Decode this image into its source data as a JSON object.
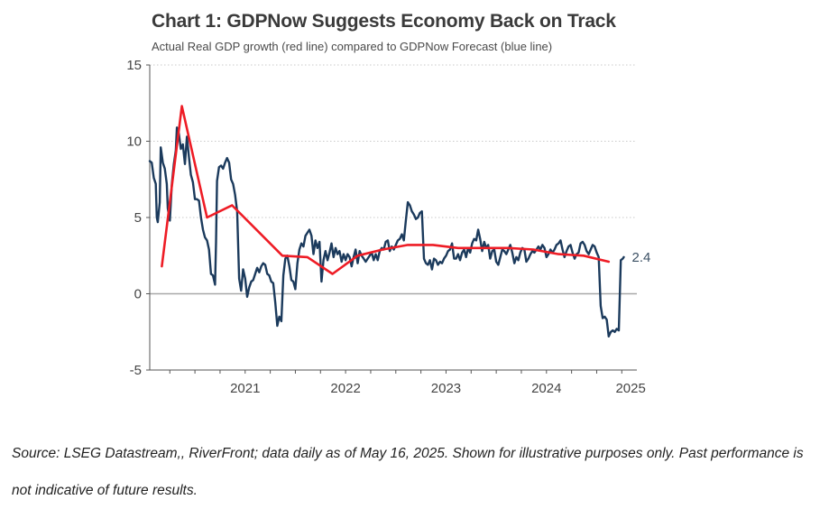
{
  "chart_data": {
    "type": "line",
    "title": "Chart 1: GDPNow Suggests Economy Back on Track",
    "subtitle": "Actual Real GDP growth (red line) compared to GDPNow Forecast (blue line)",
    "xlabel": "",
    "ylabel": "",
    "xlim": [
      2020.55,
      2025.4
    ],
    "ylim": [
      -5,
      15
    ],
    "y_ticks": [
      -5,
      0,
      5,
      10,
      15
    ],
    "y_tick_labels": [
      "-5",
      "0",
      "5",
      "10",
      "15"
    ],
    "x_tick_labels": [
      {
        "label": "2021",
        "value": 2021.0
      },
      {
        "label": "2022",
        "value": 2022.0
      },
      {
        "label": "2023",
        "value": 2023.0
      },
      {
        "label": "2024",
        "value": 2024.0
      },
      {
        "label": "2025",
        "value": 2025.0
      }
    ],
    "grid": "horizontal dotted",
    "end_label": "2.4",
    "series": [
      {
        "color": "#1b3a5c",
        "points": [
          [
            2020.55,
            8.7
          ],
          [
            2020.57,
            8.6
          ],
          [
            2020.59,
            7.6
          ],
          [
            2020.61,
            7.2
          ],
          [
            2020.62,
            5.0
          ],
          [
            2020.63,
            4.7
          ],
          [
            2020.65,
            6.0
          ],
          [
            2020.66,
            9.6
          ],
          [
            2020.68,
            8.6
          ],
          [
            2020.7,
            8.2
          ],
          [
            2020.72,
            7.2
          ],
          [
            2020.73,
            5.6
          ],
          [
            2020.75,
            4.8
          ],
          [
            2020.77,
            7.2
          ],
          [
            2020.79,
            8.5
          ],
          [
            2020.81,
            9.4
          ],
          [
            2020.82,
            10.9
          ],
          [
            2020.84,
            10.5
          ],
          [
            2020.86,
            9.5
          ],
          [
            2020.88,
            9.8
          ],
          [
            2020.9,
            8.5
          ],
          [
            2020.92,
            10.3
          ],
          [
            2020.94,
            9.0
          ],
          [
            2020.96,
            7.8
          ],
          [
            2020.98,
            7.3
          ],
          [
            2021.0,
            6.2
          ],
          [
            2021.02,
            6.2
          ],
          [
            2021.04,
            6.1
          ],
          [
            2021.06,
            5.0
          ],
          [
            2021.08,
            4.2
          ],
          [
            2021.1,
            3.7
          ],
          [
            2021.12,
            3.5
          ],
          [
            2021.14,
            2.9
          ],
          [
            2021.16,
            1.3
          ],
          [
            2021.18,
            1.2
          ],
          [
            2021.2,
            0.6
          ],
          [
            2021.21,
            3.4
          ],
          [
            2021.22,
            7.4
          ],
          [
            2021.24,
            8.3
          ],
          [
            2021.26,
            8.4
          ],
          [
            2021.28,
            8.2
          ],
          [
            2021.3,
            8.6
          ],
          [
            2021.32,
            8.9
          ],
          [
            2021.34,
            8.6
          ],
          [
            2021.36,
            7.5
          ],
          [
            2021.38,
            7.2
          ],
          [
            2021.4,
            6.5
          ],
          [
            2021.42,
            5.4
          ],
          [
            2021.44,
            1.0
          ],
          [
            2021.46,
            0.2
          ],
          [
            2021.48,
            1.6
          ],
          [
            2021.5,
            1.0
          ],
          [
            2021.52,
            -0.2
          ],
          [
            2021.54,
            0.4
          ],
          [
            2021.56,
            0.8
          ],
          [
            2021.58,
            0.9
          ],
          [
            2021.6,
            1.3
          ],
          [
            2021.62,
            1.7
          ],
          [
            2021.64,
            1.4
          ],
          [
            2021.66,
            1.8
          ],
          [
            2021.68,
            2.0
          ],
          [
            2021.7,
            1.9
          ],
          [
            2021.72,
            1.3
          ],
          [
            2021.74,
            1.2
          ],
          [
            2021.76,
            0.8
          ],
          [
            2021.78,
            0.7
          ],
          [
            2021.8,
            -0.6
          ],
          [
            2021.82,
            -2.1
          ],
          [
            2021.84,
            -1.5
          ],
          [
            2021.86,
            -1.8
          ],
          [
            2021.88,
            1.2
          ],
          [
            2021.9,
            2.3
          ],
          [
            2021.92,
            2.5
          ],
          [
            2021.94,
            1.8
          ],
          [
            2021.96,
            0.9
          ],
          [
            2021.98,
            0.8
          ],
          [
            2022.0,
            0.3
          ],
          [
            2022.02,
            2.0
          ],
          [
            2022.04,
            2.9
          ],
          [
            2022.06,
            3.3
          ],
          [
            2022.08,
            3.1
          ],
          [
            2022.1,
            3.8
          ],
          [
            2022.12,
            4.0
          ],
          [
            2022.14,
            4.2
          ],
          [
            2022.16,
            3.8
          ],
          [
            2022.18,
            2.6
          ],
          [
            2022.2,
            3.5
          ],
          [
            2022.22,
            3.0
          ],
          [
            2022.24,
            3.4
          ],
          [
            2022.26,
            0.8
          ],
          [
            2022.28,
            2.2
          ],
          [
            2022.3,
            2.8
          ],
          [
            2022.32,
            2.2
          ],
          [
            2022.34,
            2.7
          ],
          [
            2022.36,
            3.3
          ],
          [
            2022.38,
            2.4
          ],
          [
            2022.4,
            3.0
          ],
          [
            2022.42,
            2.6
          ],
          [
            2022.44,
            2.8
          ],
          [
            2022.46,
            2.1
          ],
          [
            2022.48,
            2.6
          ],
          [
            2022.5,
            2.2
          ],
          [
            2022.52,
            2.6
          ],
          [
            2022.54,
            2.4
          ],
          [
            2022.56,
            1.8
          ],
          [
            2022.58,
            2.4
          ],
          [
            2022.6,
            2.9
          ],
          [
            2022.62,
            2.0
          ],
          [
            2022.64,
            2.8
          ],
          [
            2022.66,
            2.5
          ],
          [
            2022.68,
            2.3
          ],
          [
            2022.7,
            2.1
          ],
          [
            2022.72,
            2.3
          ],
          [
            2022.74,
            2.5
          ],
          [
            2022.76,
            2.7
          ],
          [
            2022.78,
            2.2
          ],
          [
            2022.8,
            2.6
          ],
          [
            2022.82,
            2.2
          ],
          [
            2022.84,
            2.8
          ],
          [
            2022.86,
            3.0
          ],
          [
            2022.88,
            2.9
          ],
          [
            2022.9,
            3.4
          ],
          [
            2022.92,
            3.5
          ],
          [
            2022.94,
            2.8
          ],
          [
            2022.96,
            3.1
          ],
          [
            2022.98,
            2.9
          ],
          [
            2023.0,
            3.2
          ],
          [
            2023.02,
            3.5
          ],
          [
            2023.04,
            3.6
          ],
          [
            2023.06,
            3.9
          ],
          [
            2023.08,
            3.5
          ],
          [
            2023.1,
            4.8
          ],
          [
            2023.12,
            6.0
          ],
          [
            2023.14,
            5.8
          ],
          [
            2023.16,
            5.4
          ],
          [
            2023.18,
            5.2
          ],
          [
            2023.2,
            4.9
          ],
          [
            2023.22,
            5.0
          ],
          [
            2023.24,
            5.3
          ],
          [
            2023.26,
            5.4
          ],
          [
            2023.28,
            2.3
          ],
          [
            2023.3,
            2.0
          ],
          [
            2023.32,
            1.9
          ],
          [
            2023.34,
            2.2
          ],
          [
            2023.36,
            1.6
          ],
          [
            2023.38,
            2.3
          ],
          [
            2023.4,
            2.2
          ],
          [
            2023.42,
            1.9
          ],
          [
            2023.44,
            2.1
          ],
          [
            2023.46,
            2.0
          ],
          [
            2023.48,
            2.3
          ],
          [
            2023.5,
            2.5
          ],
          [
            2023.52,
            2.8
          ],
          [
            2023.54,
            2.9
          ],
          [
            2023.56,
            3.3
          ],
          [
            2023.58,
            2.3
          ],
          [
            2023.6,
            2.3
          ],
          [
            2023.62,
            2.6
          ],
          [
            2023.64,
            2.2
          ],
          [
            2023.66,
            2.7
          ],
          [
            2023.68,
            2.9
          ],
          [
            2023.7,
            2.4
          ],
          [
            2023.72,
            3.0
          ],
          [
            2023.74,
            2.7
          ],
          [
            2023.76,
            3.3
          ],
          [
            2023.78,
            3.6
          ],
          [
            2023.8,
            3.5
          ],
          [
            2023.82,
            4.2
          ],
          [
            2023.84,
            3.6
          ],
          [
            2023.86,
            2.8
          ],
          [
            2023.88,
            3.4
          ],
          [
            2023.9,
            3.0
          ],
          [
            2023.92,
            3.2
          ],
          [
            2023.94,
            2.3
          ],
          [
            2023.96,
            2.8
          ],
          [
            2023.98,
            2.9
          ],
          [
            2024.0,
            2.1
          ],
          [
            2024.02,
            1.9
          ],
          [
            2024.04,
            2.4
          ],
          [
            2024.06,
            2.9
          ],
          [
            2024.08,
            2.8
          ],
          [
            2024.1,
            2.6
          ],
          [
            2024.12,
            2.9
          ],
          [
            2024.14,
            3.2
          ],
          [
            2024.16,
            2.7
          ],
          [
            2024.18,
            2.0
          ],
          [
            2024.2,
            2.4
          ],
          [
            2024.22,
            2.2
          ],
          [
            2024.24,
            2.7
          ],
          [
            2024.26,
            3.0
          ],
          [
            2024.28,
            2.9
          ],
          [
            2024.3,
            2.1
          ],
          [
            2024.32,
            2.3
          ],
          [
            2024.34,
            2.6
          ],
          [
            2024.36,
            2.8
          ],
          [
            2024.38,
            2.7
          ],
          [
            2024.4,
            2.9
          ],
          [
            2024.42,
            3.1
          ],
          [
            2024.44,
            2.9
          ],
          [
            2024.46,
            3.2
          ],
          [
            2024.48,
            3.0
          ],
          [
            2024.5,
            2.4
          ],
          [
            2024.52,
            2.6
          ],
          [
            2024.54,
            2.9
          ],
          [
            2024.56,
            2.7
          ],
          [
            2024.58,
            2.9
          ],
          [
            2024.6,
            3.2
          ],
          [
            2024.62,
            3.3
          ],
          [
            2024.64,
            3.5
          ],
          [
            2024.66,
            2.9
          ],
          [
            2024.68,
            2.4
          ],
          [
            2024.7,
            2.8
          ],
          [
            2024.72,
            3.1
          ],
          [
            2024.74,
            3.2
          ],
          [
            2024.76,
            2.7
          ],
          [
            2024.78,
            2.3
          ],
          [
            2024.8,
            2.6
          ],
          [
            2024.82,
            2.7
          ],
          [
            2024.84,
            3.3
          ],
          [
            2024.86,
            3.4
          ],
          [
            2024.88,
            3.2
          ],
          [
            2024.9,
            2.8
          ],
          [
            2024.92,
            2.6
          ],
          [
            2024.94,
            2.9
          ],
          [
            2024.96,
            3.2
          ],
          [
            2024.98,
            3.1
          ],
          [
            2025.0,
            2.7
          ],
          [
            2025.02,
            2.4
          ],
          [
            2025.04,
            -0.8
          ],
          [
            2025.06,
            -1.6
          ],
          [
            2025.08,
            -1.5
          ],
          [
            2025.1,
            -1.7
          ],
          [
            2025.12,
            -2.8
          ],
          [
            2025.14,
            -2.5
          ],
          [
            2025.16,
            -2.4
          ],
          [
            2025.18,
            -2.5
          ],
          [
            2025.2,
            -2.3
          ],
          [
            2025.22,
            -2.4
          ],
          [
            2025.24,
            2.2
          ],
          [
            2025.26,
            2.3
          ],
          [
            2025.27,
            2.4
          ]
        ]
      },
      {
        "color": "#ee1c25",
        "points": [
          [
            2020.67,
            1.8
          ],
          [
            2020.87,
            12.3
          ],
          [
            2021.12,
            5.0
          ],
          [
            2021.37,
            5.8
          ],
          [
            2021.87,
            2.5
          ],
          [
            2022.12,
            2.4
          ],
          [
            2022.37,
            1.3
          ],
          [
            2022.62,
            2.5
          ],
          [
            2022.87,
            2.9
          ],
          [
            2023.12,
            3.2
          ],
          [
            2023.37,
            3.2
          ],
          [
            2023.62,
            3.0
          ],
          [
            2023.87,
            3.0
          ],
          [
            2024.12,
            3.0
          ],
          [
            2024.37,
            2.9
          ],
          [
            2024.62,
            2.6
          ],
          [
            2024.87,
            2.5
          ],
          [
            2025.12,
            2.1
          ]
        ]
      }
    ]
  },
  "source_note": "Source: LSEG Datastream,, RiverFront; data daily as of May 16, 2025. Shown for illustrative purposes only. Past performance is not indicative of future results."
}
